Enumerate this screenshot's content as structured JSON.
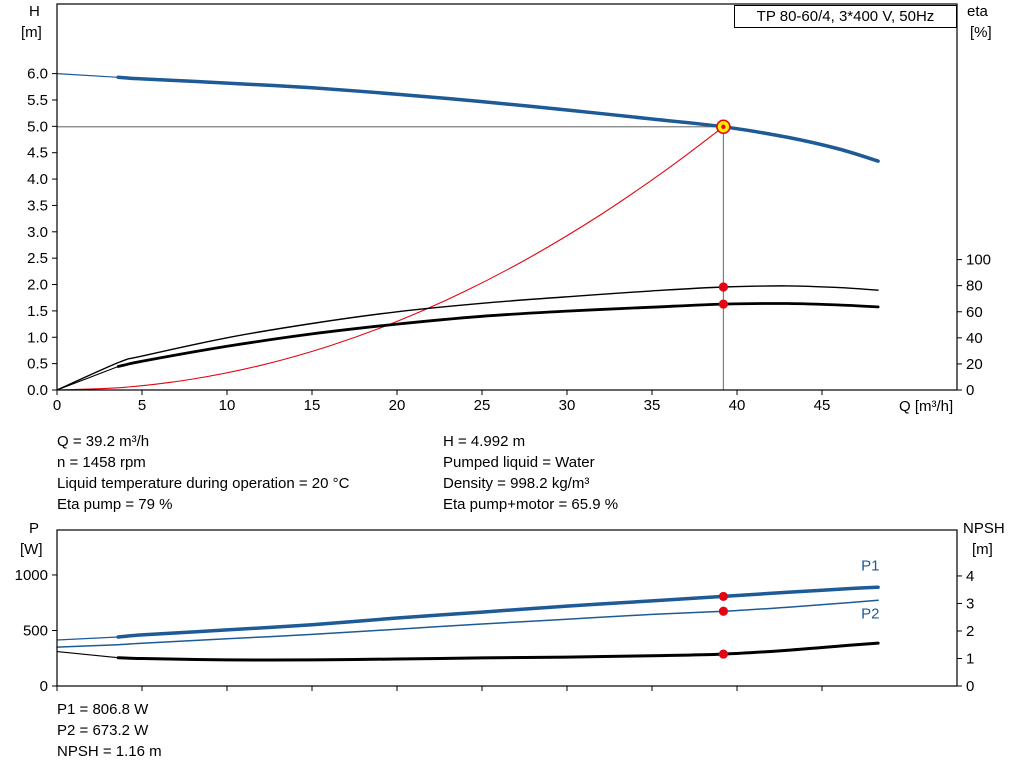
{
  "title_box": "TP 80-60/4, 3*400 V, 50Hz",
  "info_panel_top": {
    "left": [
      "Q = 39.2 m³/h",
      "n = 1458 rpm",
      "Liquid temperature during operation = 20 °C",
      "Eta pump = 79 %"
    ],
    "right": [
      "H = 4.992 m",
      "Pumped liquid = Water",
      "Density = 998.2 kg/m³",
      "Eta pump+motor = 65.9 %"
    ]
  },
  "info_panel_bottom": [
    "P1 = 806.8 W",
    "P2 = 673.2 W",
    "NPSH = 1.16 m"
  ],
  "colors": {
    "curve_blue": "#1d5a96",
    "curve_red": "#e30613",
    "curve_black": "#000000",
    "duty_yellow": "#ffed00",
    "crosshair_gray": "#7f7f7f"
  },
  "chart_data": [
    {
      "type": "line",
      "title": "TP 80-60/4, 3*400 V, 50Hz",
      "grid": false,
      "x_axis": {
        "label": "Q [m³/h]",
        "min": 0,
        "max": 52.94,
        "show_tick_labels": true,
        "ticks": [
          "0",
          "5",
          "10",
          "15",
          "20",
          "25",
          "30",
          "35",
          "40",
          "45"
        ]
      },
      "y_left": {
        "label": "H [m]",
        "name": "H",
        "unit": "[m]",
        "min": 0,
        "max": 7.32,
        "ticks": [
          "0.0",
          "0.5",
          "1.0",
          "1.5",
          "2.0",
          "2.5",
          "3.0",
          "3.5",
          "4.0",
          "4.5",
          "5.0",
          "5.5",
          "6.0"
        ]
      },
      "y_right": {
        "label": "eta [%]",
        "name": "eta",
        "unit": "[%]",
        "min": 0,
        "max": 296,
        "ticks": [
          "0",
          "20",
          "40",
          "60",
          "80",
          "100"
        ]
      },
      "duty_lines": {
        "x": 39.2,
        "y": 4.992,
        "axis": "left"
      },
      "series": [
        {
          "name": "system-curve",
          "axis": "left",
          "color": "#e30613",
          "width": 1.1,
          "x": [
            0,
            4,
            8,
            12,
            16,
            20,
            24,
            28,
            32,
            36,
            39.2
          ],
          "y": [
            0,
            0.052,
            0.208,
            0.468,
            0.832,
            1.3,
            1.872,
            2.548,
            3.329,
            4.213,
            4.992
          ]
        },
        {
          "name": "eta-pump-curve",
          "axis": "right",
          "color": "#000000",
          "width": 1.4,
          "x": [
            0,
            3.6,
            5,
            10,
            15,
            20,
            25,
            30,
            35,
            39.2,
            43,
            46,
            48.3
          ],
          "y": [
            0,
            21,
            26,
            40,
            51,
            60,
            66.5,
            71.5,
            76,
            79,
            79.8,
            78.5,
            76.5
          ]
        },
        {
          "name": "eta-pump-motor-leader",
          "axis": "right",
          "color": "#000000",
          "width": 1.1,
          "x": [
            0,
            3.6
          ],
          "y": [
            0,
            18
          ]
        },
        {
          "name": "eta-pump-motor-curve",
          "axis": "right",
          "color": "#000000",
          "width": 2.8,
          "x": [
            3.6,
            5,
            10,
            15,
            20,
            25,
            30,
            35,
            39.2,
            43,
            46,
            48.3
          ],
          "y": [
            18,
            22,
            33.5,
            43,
            50.5,
            56.5,
            60.5,
            63.5,
            65.9,
            66.3,
            65.2,
            63.7
          ]
        },
        {
          "name": "head-curve-leader",
          "axis": "left",
          "color": "#1d5a96",
          "width": 1.2,
          "x": [
            0,
            3.6
          ],
          "y": [
            6.0,
            5.93
          ]
        },
        {
          "name": "head-curve",
          "axis": "left",
          "color": "#1d5a96",
          "width": 3.5,
          "x": [
            3.6,
            5,
            10,
            15,
            20,
            25,
            30,
            35,
            39.2,
            43,
            46,
            48.3
          ],
          "y": [
            5.93,
            5.9,
            5.82,
            5.73,
            5.61,
            5.47,
            5.31,
            5.14,
            4.992,
            4.79,
            4.57,
            4.34
          ]
        }
      ],
      "markers": [
        {
          "name": "duty-point",
          "style": "duty",
          "axis": "left",
          "x": 39.2,
          "y": 4.992
        },
        {
          "name": "eta-pump-point",
          "style": "dot",
          "axis": "right",
          "x": 39.2,
          "y": 79
        },
        {
          "name": "eta-pump-motor-point",
          "style": "dot",
          "axis": "right",
          "x": 39.2,
          "y": 65.9
        }
      ],
      "annotations": []
    },
    {
      "type": "line",
      "title": "",
      "grid": false,
      "x_axis": {
        "label": "",
        "min": 0,
        "max": 52.94,
        "show_tick_labels": false,
        "ticks": [
          "0",
          "5",
          "10",
          "15",
          "20",
          "25",
          "30",
          "35",
          "40",
          "45"
        ]
      },
      "y_left": {
        "label": "P [W]",
        "name": "P",
        "unit": "[W]",
        "min": 0,
        "max": 1405,
        "ticks": [
          "0",
          "500",
          "1000"
        ]
      },
      "y_right": {
        "label": "NPSH [m]",
        "name": "NPSH",
        "unit": "[m]",
        "min": 0,
        "max": 5.67,
        "ticks": [
          "0",
          "1",
          "2",
          "3",
          "4"
        ]
      },
      "series": [
        {
          "name": "p2-curve",
          "axis": "left",
          "color": "#1d5a96",
          "width": 1.5,
          "x": [
            0,
            3.6,
            5,
            10,
            15,
            20,
            25,
            30,
            35,
            39.2,
            43,
            46,
            48.3
          ],
          "y": [
            350,
            372,
            385,
            425,
            465,
            512,
            558,
            602,
            645,
            673.2,
            710,
            744,
            772
          ]
        },
        {
          "name": "p1-curve-leader",
          "axis": "left",
          "color": "#1d5a96",
          "width": 1.2,
          "x": [
            0,
            3.6
          ],
          "y": [
            414,
            441
          ]
        },
        {
          "name": "p1-curve",
          "axis": "left",
          "color": "#1d5a96",
          "width": 3.5,
          "x": [
            3.6,
            5,
            10,
            15,
            20,
            25,
            30,
            35,
            39.2,
            43,
            46,
            48.3
          ],
          "y": [
            441,
            460,
            505,
            552,
            612,
            666,
            720,
            766,
            806.8,
            845,
            872,
            890
          ]
        },
        {
          "name": "npsh-curve-leader",
          "axis": "right",
          "color": "#000000",
          "width": 1.1,
          "x": [
            0,
            3.6
          ],
          "y": [
            1.25,
            1.03
          ]
        },
        {
          "name": "npsh-curve",
          "axis": "right",
          "color": "#000000",
          "width": 3,
          "x": [
            3.6,
            5,
            10,
            15,
            20,
            25,
            30,
            35,
            39.2,
            43,
            46,
            48.3
          ],
          "y": [
            1.03,
            1.0,
            0.95,
            0.95,
            0.98,
            1.02,
            1.05,
            1.1,
            1.16,
            1.3,
            1.45,
            1.56
          ]
        }
      ],
      "markers": [
        {
          "name": "p1-point",
          "style": "dot",
          "axis": "left",
          "x": 39.2,
          "y": 806.8
        },
        {
          "name": "p2-point",
          "style": "dot",
          "axis": "left",
          "x": 39.2,
          "y": 673.2
        },
        {
          "name": "npsh-point",
          "style": "dot",
          "axis": "right",
          "x": 39.2,
          "y": 1.16
        }
      ],
      "annotations": [
        {
          "text": "P1",
          "x": 47.3,
          "y": 1040,
          "axis": "left",
          "color": "#1d5a96"
        },
        {
          "text": "P2",
          "x": 47.3,
          "y": 610,
          "axis": "left",
          "color": "#1d5a96"
        }
      ]
    }
  ]
}
